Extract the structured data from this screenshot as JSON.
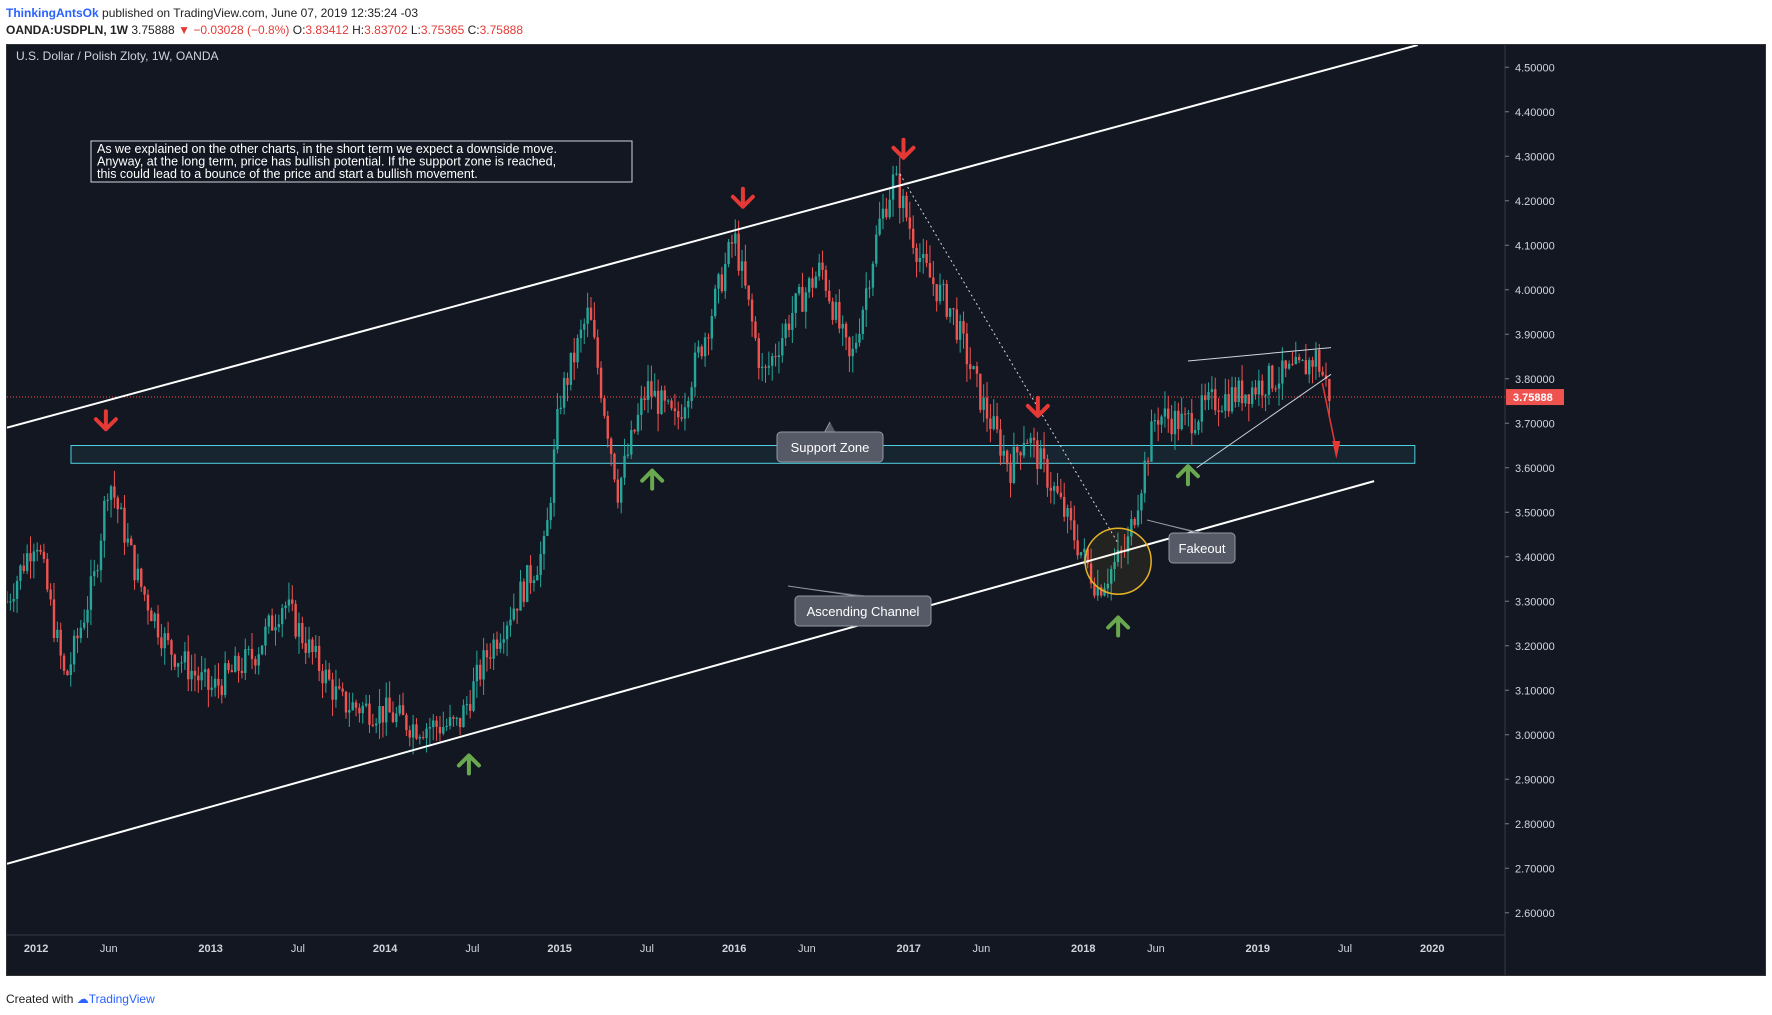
{
  "header": {
    "author": "ThinkingAntsOk",
    "published": "published on TradingView.com, June 07, 2019 12:35:24 -03",
    "symbol": "OANDA:USDPLN, 1W",
    "last": "3.75888",
    "change_arrow": "▼",
    "change": "−0.03028 (−0.8%)",
    "open_label": "O:",
    "open": "3.83412",
    "high_label": "H:",
    "high": "3.83702",
    "low_label": "L:",
    "low": "3.75365",
    "close_label": "C:",
    "close": "3.75888"
  },
  "chart_data": {
    "type": "candlestick",
    "title": "U.S. Dollar / Polish Zloty, 1W, OANDA",
    "ylim": [
      2.55,
      4.55
    ],
    "y_ticks": [
      "4.50000",
      "4.40000",
      "4.30000",
      "4.20000",
      "4.10000",
      "4.00000",
      "3.90000",
      "3.80000",
      "3.70000",
      "3.60000",
      "3.50000",
      "3.40000",
      "3.30000",
      "3.20000",
      "3.10000",
      "3.00000",
      "2.90000",
      "2.80000",
      "2.70000",
      "2.60000"
    ],
    "x_ticks": [
      "2012",
      "Jun",
      "2013",
      "Jul",
      "2014",
      "Jul",
      "2015",
      "Jul",
      "2016",
      "Jun",
      "2017",
      "Jun",
      "2018",
      "Jun",
      "2019",
      "Jul",
      "2020"
    ],
    "last_price_label": "3.75888",
    "price_path": [
      [
        "2011-11",
        3.3
      ],
      [
        "2012-01",
        3.45
      ],
      [
        "2012-03",
        3.12
      ],
      [
        "2012-05",
        3.35
      ],
      [
        "2012-06",
        3.58
      ],
      [
        "2012-08",
        3.35
      ],
      [
        "2012-10",
        3.2
      ],
      [
        "2013-01",
        3.1
      ],
      [
        "2013-04",
        3.18
      ],
      [
        "2013-06",
        3.3
      ],
      [
        "2013-08",
        3.18
      ],
      [
        "2013-10",
        3.07
      ],
      [
        "2014-01",
        3.05
      ],
      [
        "2014-03",
        3.02
      ],
      [
        "2014-06",
        3.02
      ],
      [
        "2014-08",
        3.18
      ],
      [
        "2014-10",
        3.3
      ],
      [
        "2014-12",
        3.42
      ],
      [
        "2015-01",
        3.75
      ],
      [
        "2015-03",
        3.95
      ],
      [
        "2015-05",
        3.55
      ],
      [
        "2015-07",
        3.78
      ],
      [
        "2015-09",
        3.7
      ],
      [
        "2015-11",
        3.9
      ],
      [
        "2016-01",
        4.12
      ],
      [
        "2016-03",
        3.8
      ],
      [
        "2016-05",
        3.95
      ],
      [
        "2016-07",
        4.05
      ],
      [
        "2016-09",
        3.83
      ],
      [
        "2016-11",
        4.15
      ],
      [
        "2016-12",
        4.25
      ],
      [
        "2017-02",
        4.05
      ],
      [
        "2017-04",
        3.95
      ],
      [
        "2017-06",
        3.75
      ],
      [
        "2017-08",
        3.6
      ],
      [
        "2017-09",
        3.68
      ],
      [
        "2017-11",
        3.55
      ],
      [
        "2018-01",
        3.4
      ],
      [
        "2018-02",
        3.33
      ],
      [
        "2018-04",
        3.42
      ],
      [
        "2018-06",
        3.72
      ],
      [
        "2018-08",
        3.7
      ],
      [
        "2018-10",
        3.75
      ],
      [
        "2018-12",
        3.77
      ],
      [
        "2019-02",
        3.8
      ],
      [
        "2019-04",
        3.82
      ],
      [
        "2019-05",
        3.85
      ],
      [
        "2019-06",
        3.76
      ]
    ],
    "annotations": {
      "note": "As we explained on the other charts, in the short term we expect a downside move.\nAnyway, at the long term, price has bullish potential. If the support zone is reached,\nthis could lead to a bounce of the price and start a bullish movement.",
      "support_zone": "Support Zone",
      "fakeout": "Fakeout",
      "ascending_channel": "Ascending Channel"
    },
    "support_zone_range": [
      3.61,
      3.65
    ],
    "colors": {
      "background": "#131722",
      "up": "#26a69a",
      "down": "#ef5350",
      "zone": "#4dd0e1",
      "arrow_down": "#e53935",
      "arrow_up": "#6aa84f",
      "circle": "#e6b325"
    }
  },
  "footer": {
    "created_with": "Created with",
    "brand": "TradingView"
  }
}
